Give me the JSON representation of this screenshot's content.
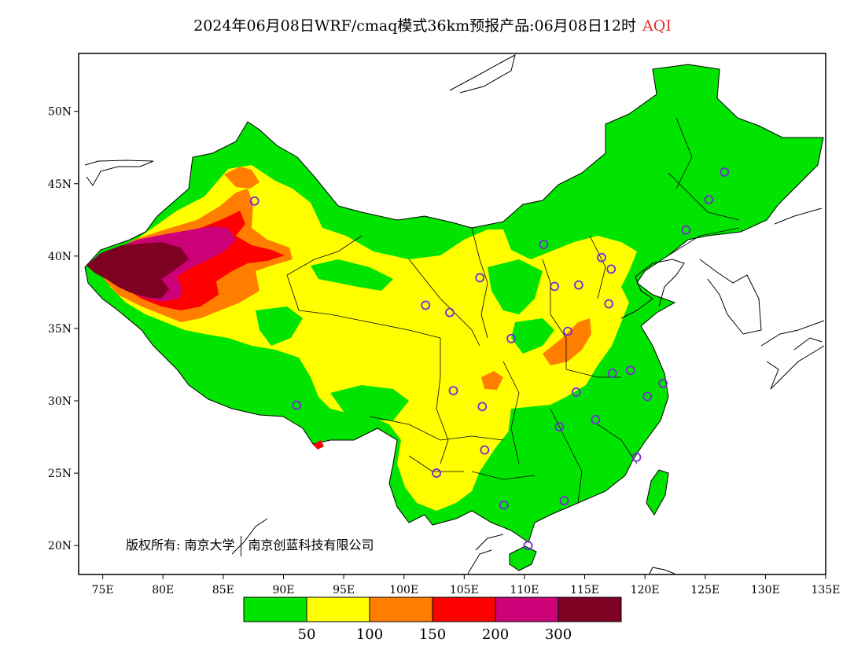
{
  "title": {
    "main": "2024年06月08日WRF/cmaq模式36km预报产品:06月08日12时",
    "variable": "AQI"
  },
  "axes": {
    "lon_range": [
      73,
      135
    ],
    "lat_range": [
      18,
      54
    ],
    "lon_ticks": [
      "75E",
      "80E",
      "85E",
      "90E",
      "95E",
      "100E",
      "105E",
      "110E",
      "115E",
      "120E",
      "125E",
      "130E",
      "135E"
    ],
    "lat_ticks": [
      "20N",
      "25N",
      "30N",
      "35N",
      "40N",
      "45N",
      "50N"
    ]
  },
  "legend": {
    "colors": [
      "#00e400",
      "#ffff00",
      "#ff7e00",
      "#ff0000",
      "#cc0077",
      "#7e0023"
    ],
    "labels": [
      "50",
      "100",
      "150",
      "200",
      "300"
    ]
  },
  "copyright": {
    "owner1": "版权所有: 南京大学",
    "owner2": "南京创蓝科技有限公司"
  },
  "station_color": "#7a2ad8",
  "stations": [
    [
      87.6,
      43.8
    ],
    [
      91.1,
      29.7
    ],
    [
      101.8,
      36.6
    ],
    [
      103.8,
      36.1
    ],
    [
      106.3,
      38.5
    ],
    [
      111.6,
      40.8
    ],
    [
      112.5,
      37.9
    ],
    [
      114.5,
      38.0
    ],
    [
      116.4,
      39.9
    ],
    [
      117.2,
      39.1
    ],
    [
      117.0,
      36.7
    ],
    [
      113.6,
      34.8
    ],
    [
      108.9,
      34.3
    ],
    [
      104.1,
      30.7
    ],
    [
      106.5,
      29.6
    ],
    [
      106.7,
      26.6
    ],
    [
      102.7,
      25.0
    ],
    [
      108.3,
      22.8
    ],
    [
      110.3,
      20.0
    ],
    [
      113.3,
      23.1
    ],
    [
      112.9,
      28.2
    ],
    [
      114.3,
      30.6
    ],
    [
      115.9,
      28.7
    ],
    [
      117.3,
      31.9
    ],
    [
      118.8,
      32.1
    ],
    [
      121.5,
      31.2
    ],
    [
      120.2,
      30.3
    ],
    [
      119.3,
      26.1
    ],
    [
      123.4,
      41.8
    ],
    [
      125.3,
      43.9
    ],
    [
      126.6,
      45.8
    ]
  ]
}
